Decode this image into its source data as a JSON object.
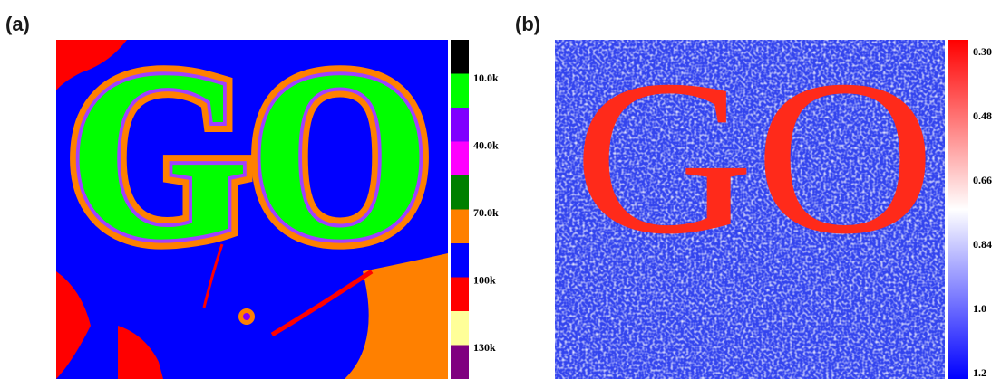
{
  "panels": [
    {
      "label": "(a)",
      "image_text": "GO",
      "colorbar": {
        "labels": [
          "10.0k",
          "40.0k",
          "70.0k",
          "100k",
          "130k"
        ]
      }
    },
    {
      "label": "(b)",
      "image_text": "GO",
      "colorbar": {
        "labels": [
          "0.30",
          "0.48",
          "0.66",
          "0.84",
          "1.0",
          "1.2"
        ]
      }
    }
  ]
}
